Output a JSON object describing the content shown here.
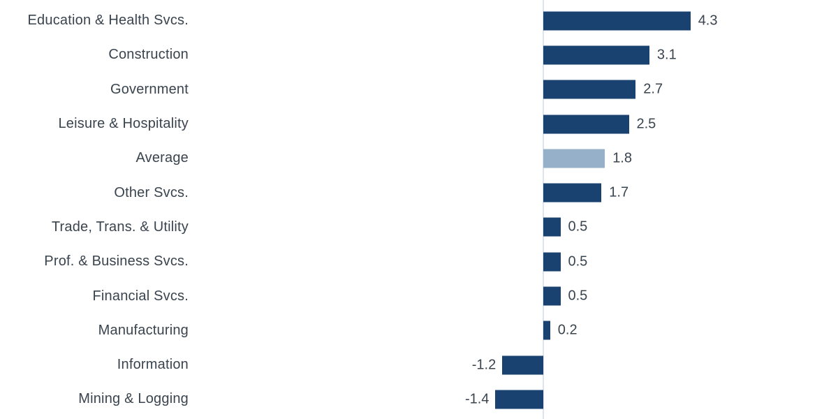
{
  "chart_data": {
    "type": "bar",
    "orientation": "horizontal",
    "title": "",
    "xlabel": "",
    "ylabel": "",
    "grid": false,
    "legend": false,
    "categories": [
      "Education & Health Svcs.",
      "Construction",
      "Government",
      "Leisure & Hospitality",
      "Average",
      "Other Svcs.",
      "Trade, Trans. & Utility",
      "Prof. & Business Svcs.",
      "Financial Svcs.",
      "Manufacturing",
      "Information",
      "Mining & Logging"
    ],
    "values": [
      4.3,
      3.1,
      2.7,
      2.5,
      1.8,
      1.7,
      0.5,
      0.5,
      0.5,
      0.2,
      -1.2,
      -1.4
    ],
    "value_labels": [
      "4.3",
      "3.1",
      "2.7",
      "2.5",
      "1.8",
      "1.7",
      "0.5",
      "0.5",
      "0.5",
      "0.2",
      "-1.2",
      "-1.4"
    ],
    "highlight_index": 4,
    "highlight_category": "Average",
    "xlim": [
      -2.2,
      8.6
    ],
    "colors": {
      "bar": "#1a4270",
      "highlight_bar": "#96b0c9",
      "text": "#3a444e",
      "axis_line": "#dce5ee",
      "background": "#ffffff"
    }
  }
}
